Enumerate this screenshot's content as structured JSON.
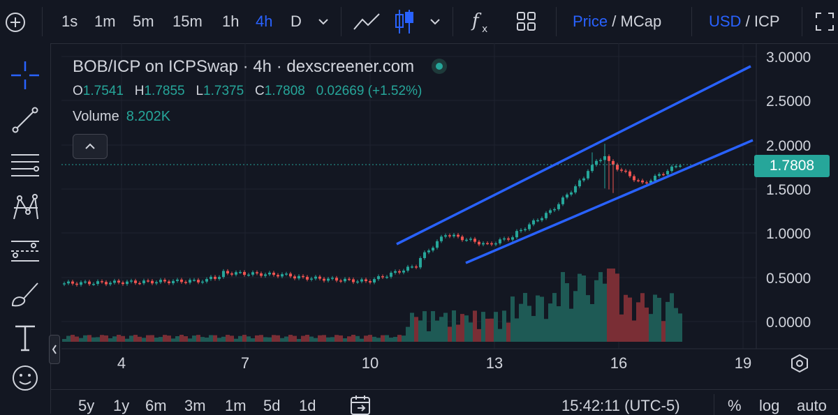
{
  "toolbar": {
    "intervals": [
      "1s",
      "1m",
      "5m",
      "15m",
      "1h",
      "4h",
      "D"
    ],
    "active_interval": "4h",
    "price_label": "Price",
    "mcap_label": "MCap",
    "usd_label": "USD",
    "icp_label": "ICP",
    "separator": "/"
  },
  "legend": {
    "title": "BOB/ICP on ICPSwap · 4h · dexscreener.com",
    "o_label": "O",
    "o": "1.7541",
    "h_label": "H",
    "h": "1.7855",
    "l_label": "L",
    "l": "1.7375",
    "c_label": "C",
    "c": "1.7808",
    "change": "0.02669 (+1.52%)",
    "volume_label": "Volume",
    "volume": "8.202K"
  },
  "price_axis": [
    "3.0000",
    "2.5000",
    "2.0000",
    "1.5000",
    "1.0000",
    "0.5000",
    "0.0000"
  ],
  "last_price": "1.7808",
  "time_axis": [
    "4",
    "7",
    "10",
    "13",
    "16",
    "19"
  ],
  "bottom": {
    "ranges": [
      "5y",
      "1y",
      "6m",
      "3m",
      "1m",
      "5d",
      "1d"
    ],
    "clock": "15:42:11 (UTC-5)",
    "pct": "%",
    "log": "log",
    "auto": "auto"
  },
  "colors": {
    "up": "#26a69a",
    "down": "#ef5350",
    "accent": "#2962ff",
    "bg": "#131722"
  },
  "icons": [
    "add-icon",
    "line-chart-icon",
    "candles-icon",
    "chevron-down-icon",
    "fx-icon",
    "layout-grid-icon",
    "fullscreen-icon",
    "crosshair-icon",
    "trendline-icon",
    "fib-icon",
    "pattern-icon",
    "forecast-icon",
    "brush-icon",
    "text-icon",
    "emoji-icon",
    "settings-hex-icon",
    "calendar-range-icon"
  ]
}
